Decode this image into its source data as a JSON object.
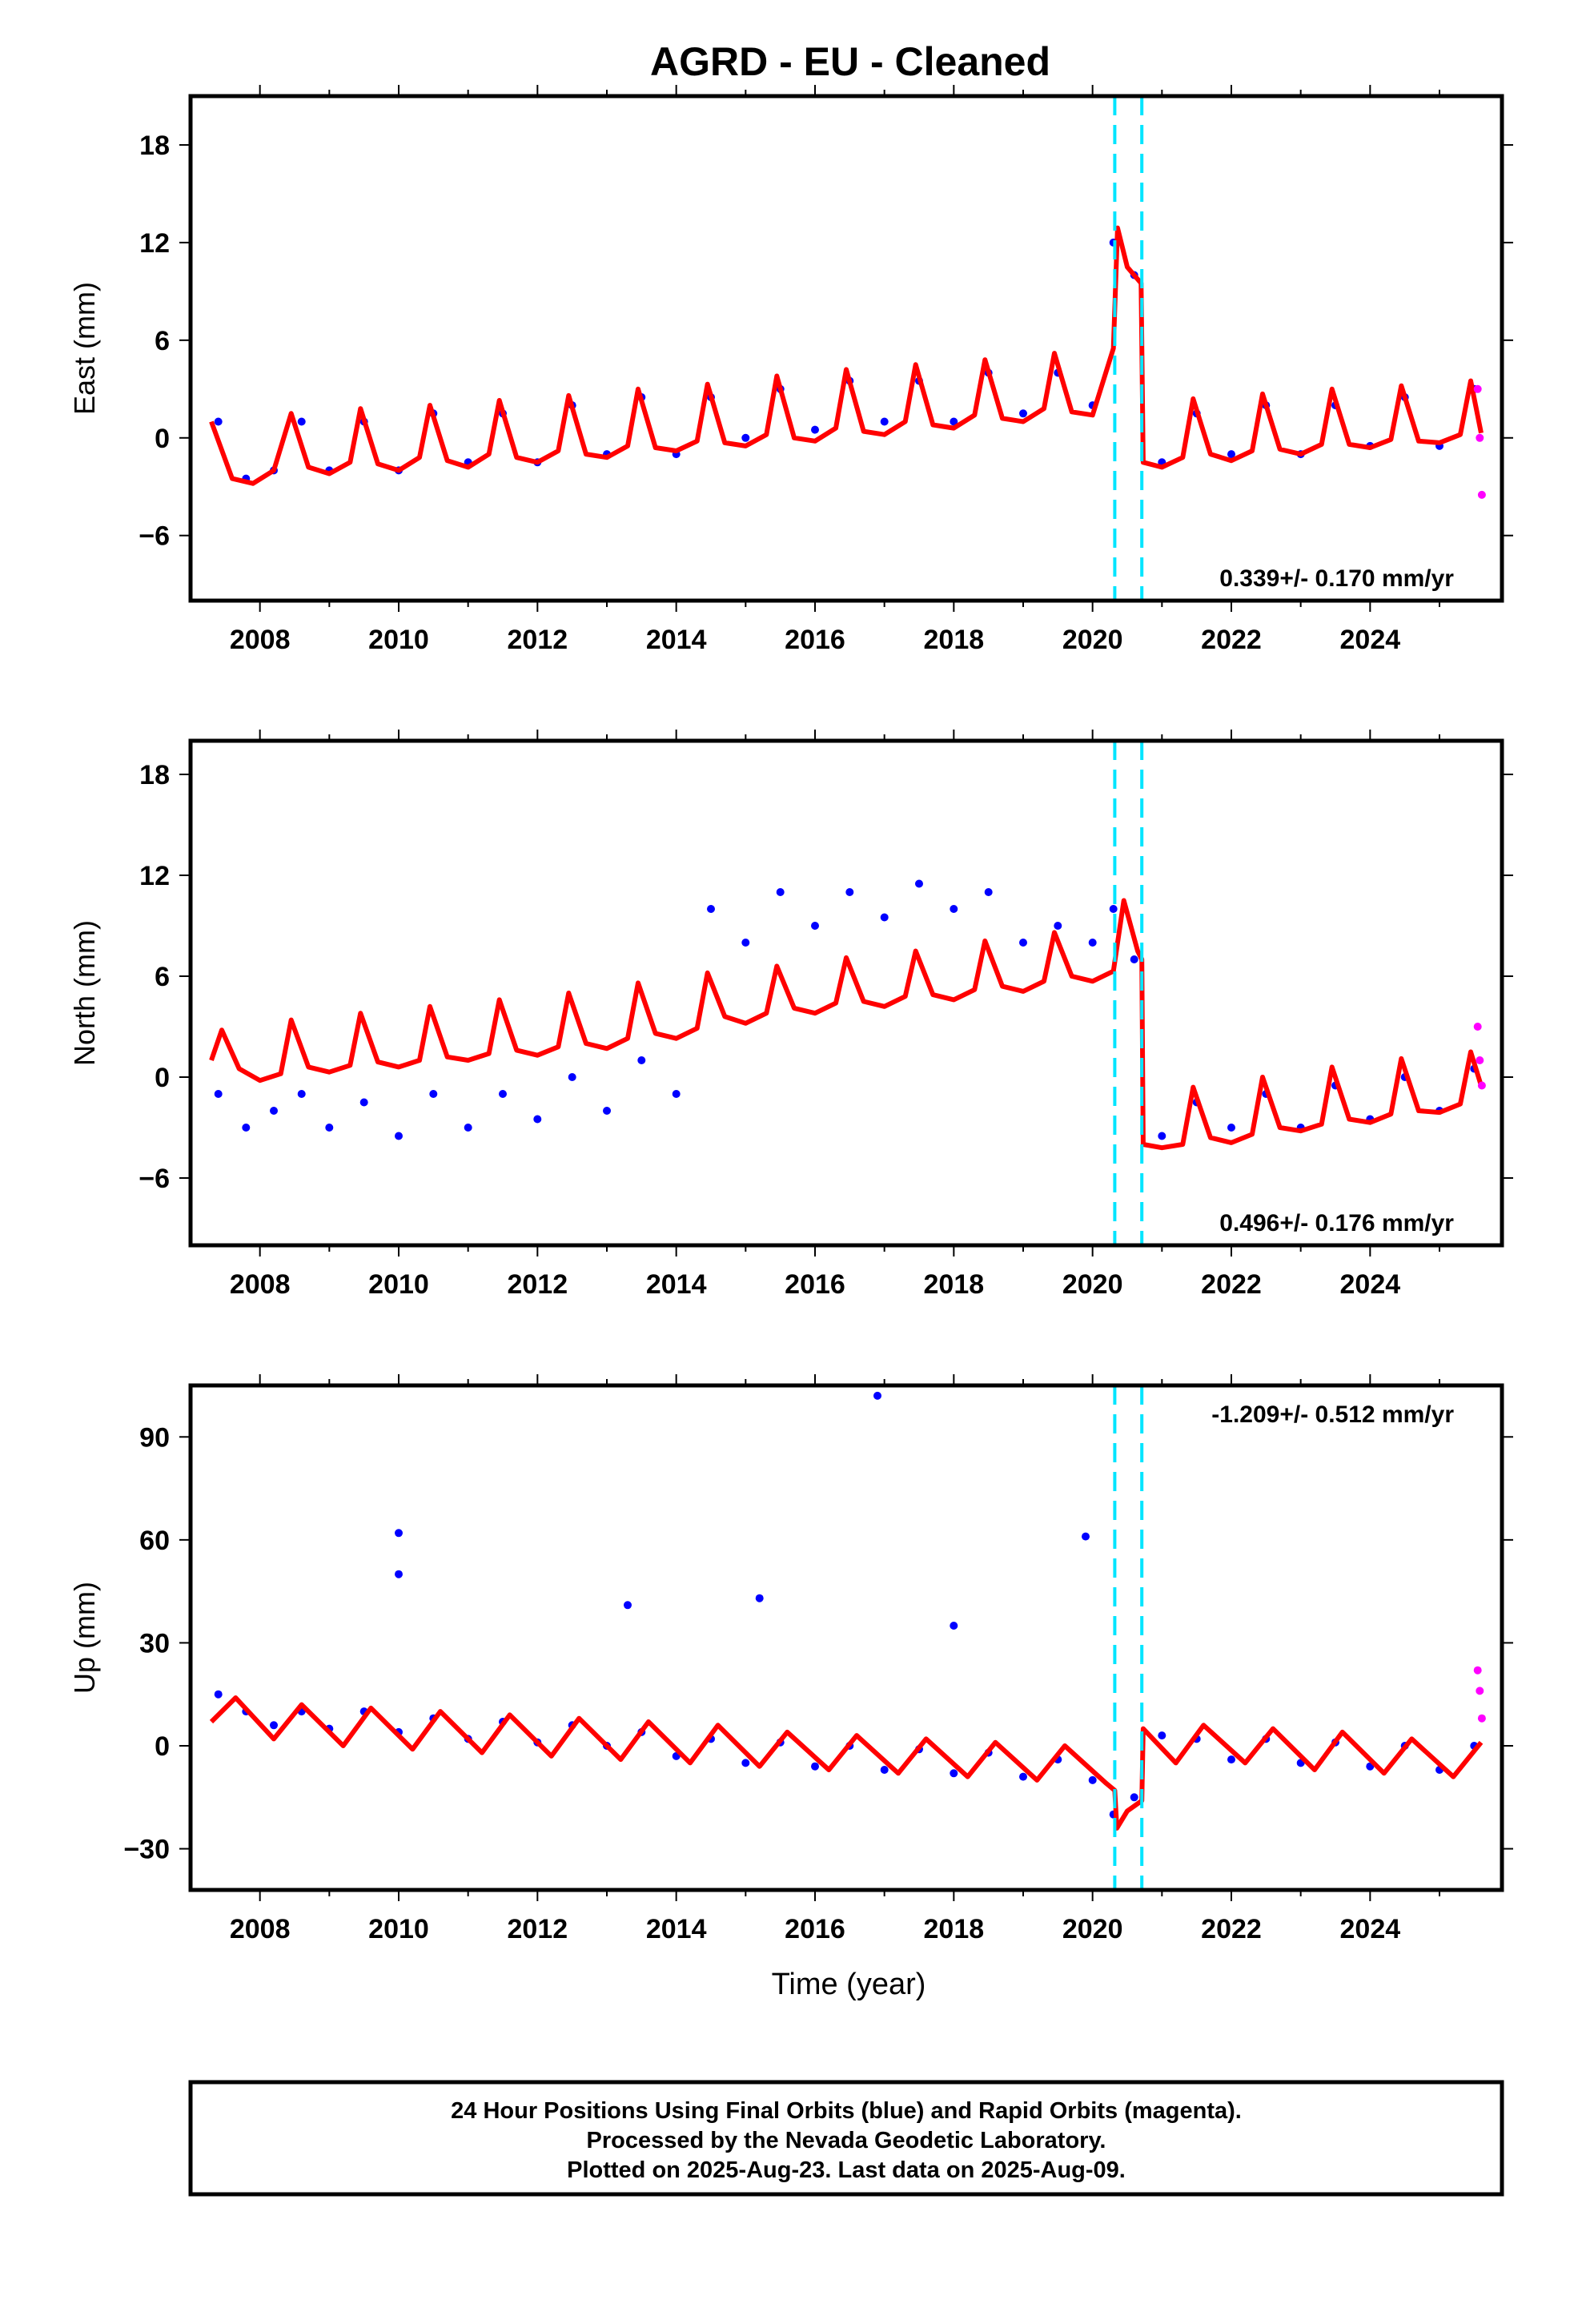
{
  "title": "AGRD  - EU - Cleaned",
  "x_label": "Time (year)",
  "x_ticks": [
    "2008",
    "2010",
    "2012",
    "2014",
    "2016",
    "2018",
    "2020",
    "2022",
    "2024"
  ],
  "footer": {
    "line1": "24 Hour Positions Using Final Orbits (blue) and Rapid Orbits (magenta).",
    "line2": "Processed by the Nevada Geodetic Laboratory.",
    "line3": "Plotted on 2025-Aug-23. Last data on 2025-Aug-09."
  },
  "colors": {
    "final_orbits": "#0000ff",
    "rapid_orbits": "#ff00ff",
    "model_fit": "#ff0000",
    "offset_lines": "#00e5ff",
    "frame": "#000000"
  },
  "chart_data": [
    {
      "type": "scatter",
      "panel": "east",
      "ylabel": "East (mm)",
      "xlim": [
        2007.0,
        2025.9
      ],
      "ylim": [
        -10,
        21
      ],
      "y_ticks": [
        -6,
        0,
        6,
        12,
        18
      ],
      "rate_label": "0.339+/- 0.170 mm/yr",
      "offset_epochs": [
        2020.32,
        2020.71
      ],
      "series": [
        {
          "name": "Final Orbits",
          "color": "#0000ff",
          "x": [
            2007.4,
            2007.8,
            2008.2,
            2008.6,
            2009.0,
            2009.5,
            2010.0,
            2010.5,
            2011.0,
            2011.5,
            2012.0,
            2012.5,
            2013.0,
            2013.5,
            2014.0,
            2014.5,
            2015.0,
            2015.5,
            2016.0,
            2016.5,
            2017.0,
            2017.5,
            2018.0,
            2018.5,
            2019.0,
            2019.5,
            2020.0,
            2020.3,
            2020.6,
            2021.0,
            2021.5,
            2022.0,
            2022.5,
            2023.0,
            2023.5,
            2024.0,
            2024.5,
            2025.0,
            2025.5
          ],
          "y": [
            1.0,
            -2.5,
            -2.0,
            1.0,
            -2.0,
            1.0,
            -2.0,
            1.5,
            -1.5,
            1.5,
            -1.5,
            2.0,
            -1.0,
            2.5,
            -1.0,
            2.5,
            0.0,
            3.0,
            0.5,
            3.5,
            1.0,
            3.5,
            1.0,
            4.0,
            1.5,
            4.0,
            2.0,
            12.0,
            10.0,
            -1.5,
            1.5,
            -1.0,
            2.0,
            -1.0,
            2.0,
            -0.5,
            2.5,
            -0.5,
            3.0
          ]
        },
        {
          "name": "Rapid Orbits",
          "color": "#ff00ff",
          "x": [
            2025.55,
            2025.58,
            2025.61
          ],
          "y": [
            3.0,
            0.0,
            -3.5
          ]
        },
        {
          "name": "Model Fit",
          "color": "#ff0000",
          "x": [
            2007.3,
            2007.6,
            2007.9,
            2008.2,
            2008.45,
            2008.7,
            2009.0,
            2009.3,
            2009.45,
            2009.7,
            2010.0,
            2010.3,
            2010.45,
            2010.7,
            2011.0,
            2011.3,
            2011.45,
            2011.7,
            2012.0,
            2012.3,
            2012.45,
            2012.7,
            2013.0,
            2013.3,
            2013.45,
            2013.7,
            2014.0,
            2014.3,
            2014.45,
            2014.7,
            2015.0,
            2015.3,
            2015.45,
            2015.7,
            2016.0,
            2016.3,
            2016.45,
            2016.7,
            2017.0,
            2017.3,
            2017.45,
            2017.7,
            2018.0,
            2018.3,
            2018.45,
            2018.7,
            2019.0,
            2019.3,
            2019.45,
            2019.7,
            2020.0,
            2020.3,
            2020.36,
            2020.5,
            2020.7,
            2020.73,
            2021.0,
            2021.3,
            2021.45,
            2021.7,
            2022.0,
            2022.3,
            2022.45,
            2022.7,
            2023.0,
            2023.3,
            2023.45,
            2023.7,
            2024.0,
            2024.3,
            2024.45,
            2024.7,
            2025.0,
            2025.3,
            2025.45,
            2025.6
          ],
          "y": [
            1.0,
            -2.5,
            -2.8,
            -2.0,
            1.5,
            -1.8,
            -2.2,
            -1.5,
            1.8,
            -1.6,
            -2.0,
            -1.2,
            2.0,
            -1.4,
            -1.8,
            -1.0,
            2.3,
            -1.2,
            -1.5,
            -0.8,
            2.6,
            -1.0,
            -1.2,
            -0.5,
            3.0,
            -0.6,
            -0.8,
            -0.2,
            3.3,
            -0.3,
            -0.5,
            0.2,
            3.8,
            0.0,
            -0.2,
            0.6,
            4.2,
            0.4,
            0.2,
            1.0,
            4.5,
            0.8,
            0.6,
            1.4,
            4.8,
            1.2,
            1.0,
            1.8,
            5.2,
            1.6,
            1.4,
            5.5,
            12.9,
            10.5,
            9.5,
            -1.5,
            -1.8,
            -1.2,
            2.4,
            -1.0,
            -1.4,
            -0.8,
            2.7,
            -0.7,
            -1.0,
            -0.4,
            3.0,
            -0.4,
            -0.6,
            -0.1,
            3.2,
            -0.2,
            -0.3,
            0.2,
            3.5,
            0.3
          ]
        }
      ]
    },
    {
      "type": "scatter",
      "panel": "north",
      "ylabel": "North (mm)",
      "xlim": [
        2007.0,
        2025.9
      ],
      "ylim": [
        -10,
        20
      ],
      "y_ticks": [
        -6,
        0,
        6,
        12,
        18
      ],
      "rate_label": "0.496+/- 0.176 mm/yr",
      "offset_epochs": [
        2020.32,
        2020.71
      ],
      "series": [
        {
          "name": "Final Orbits",
          "color": "#0000ff",
          "x": [
            2007.4,
            2007.8,
            2008.2,
            2008.6,
            2009.0,
            2009.5,
            2010.0,
            2010.5,
            2011.0,
            2011.5,
            2012.0,
            2012.5,
            2013.0,
            2013.5,
            2014.0,
            2014.5,
            2015.0,
            2015.5,
            2016.0,
            2016.5,
            2017.0,
            2017.5,
            2018.0,
            2018.5,
            2019.0,
            2019.5,
            2020.0,
            2020.3,
            2020.6,
            2021.0,
            2021.5,
            2022.0,
            2022.5,
            2023.0,
            2023.5,
            2024.0,
            2024.5,
            2025.0,
            2025.5
          ],
          "y": [
            -1.0,
            -3.0,
            -2.0,
            -1.0,
            -3.0,
            -1.5,
            -3.5,
            -1.0,
            -3.0,
            -1.0,
            -2.5,
            0.0,
            -2.0,
            1.0,
            -1.0,
            10.0,
            8.0,
            11.0,
            9.0,
            11.0,
            9.5,
            11.5,
            10.0,
            11.0,
            8.0,
            9.0,
            8.0,
            10.0,
            7.0,
            -3.5,
            -1.5,
            -3.0,
            -1.0,
            -3.0,
            -0.5,
            -2.5,
            0.0,
            -2.0,
            0.5
          ]
        },
        {
          "name": "Rapid Orbits",
          "color": "#ff00ff",
          "x": [
            2025.55,
            2025.58,
            2025.61
          ],
          "y": [
            3.0,
            1.0,
            -0.5
          ]
        },
        {
          "name": "Model Fit",
          "color": "#ff0000",
          "x": [
            2007.3,
            2007.45,
            2007.7,
            2008.0,
            2008.3,
            2008.45,
            2008.7,
            2009.0,
            2009.3,
            2009.45,
            2009.7,
            2010.0,
            2010.3,
            2010.45,
            2010.7,
            2011.0,
            2011.3,
            2011.45,
            2011.7,
            2012.0,
            2012.3,
            2012.45,
            2012.7,
            2013.0,
            2013.3,
            2013.45,
            2013.7,
            2014.0,
            2014.3,
            2014.45,
            2014.7,
            2015.0,
            2015.3,
            2015.45,
            2015.7,
            2016.0,
            2016.3,
            2016.45,
            2016.7,
            2017.0,
            2017.3,
            2017.45,
            2017.7,
            2018.0,
            2018.3,
            2018.45,
            2018.7,
            2019.0,
            2019.3,
            2019.45,
            2019.7,
            2020.0,
            2020.3,
            2020.45,
            2020.65,
            2020.71,
            2020.73,
            2021.0,
            2021.3,
            2021.45,
            2021.7,
            2022.0,
            2022.3,
            2022.45,
            2022.7,
            2023.0,
            2023.3,
            2023.45,
            2023.7,
            2024.0,
            2024.3,
            2024.45,
            2024.7,
            2025.0,
            2025.3,
            2025.45,
            2025.6
          ],
          "y": [
            1.0,
            2.8,
            0.5,
            -0.2,
            0.2,
            3.4,
            0.6,
            0.3,
            0.7,
            3.8,
            0.9,
            0.6,
            1.0,
            4.2,
            1.2,
            1.0,
            1.4,
            4.6,
            1.6,
            1.3,
            1.8,
            5.0,
            2.0,
            1.7,
            2.3,
            5.6,
            2.6,
            2.3,
            2.9,
            6.2,
            3.6,
            3.2,
            3.8,
            6.6,
            4.1,
            3.8,
            4.4,
            7.1,
            4.5,
            4.2,
            4.8,
            7.5,
            4.9,
            4.6,
            5.2,
            8.1,
            5.4,
            5.1,
            5.7,
            8.6,
            6.0,
            5.7,
            6.3,
            10.5,
            7.5,
            7.0,
            -4.0,
            -4.2,
            -4.0,
            -0.6,
            -3.6,
            -3.9,
            -3.4,
            0.0,
            -3.0,
            -3.2,
            -2.8,
            0.6,
            -2.5,
            -2.7,
            -2.2,
            1.1,
            -2.0,
            -2.1,
            -1.6,
            1.5,
            -0.5
          ]
        }
      ]
    },
    {
      "type": "scatter",
      "panel": "up",
      "ylabel": "Up (mm)",
      "xlim": [
        2007.0,
        2025.9
      ],
      "ylim": [
        -42,
        105
      ],
      "y_ticks": [
        -30,
        0,
        30,
        60,
        90
      ],
      "rate_label": "-1.209+/- 0.512 mm/yr",
      "offset_epochs": [
        2020.32,
        2020.71
      ],
      "series": [
        {
          "name": "Final Orbits",
          "color": "#0000ff",
          "x": [
            2007.4,
            2007.8,
            2008.2,
            2008.6,
            2009.0,
            2009.5,
            2010.0,
            2010.5,
            2011.0,
            2011.5,
            2012.0,
            2012.5,
            2013.0,
            2013.5,
            2014.0,
            2014.5,
            2015.0,
            2015.5,
            2016.0,
            2016.5,
            2017.0,
            2017.5,
            2018.0,
            2018.5,
            2019.0,
            2019.5,
            2020.0,
            2020.3,
            2020.6,
            2021.0,
            2021.5,
            2022.0,
            2022.5,
            2023.0,
            2023.5,
            2024.0,
            2024.5,
            2025.0,
            2025.5,
            2010.0,
            2010.0,
            2013.3,
            2015.2,
            2016.9,
            2018.0,
            2019.9
          ],
          "y": [
            15.0,
            10.0,
            6.0,
            10.0,
            5.0,
            10.0,
            4.0,
            8.0,
            2.0,
            7.0,
            1.0,
            6.0,
            0.0,
            4.0,
            -3.0,
            2.0,
            -5.0,
            1.0,
            -6.0,
            0.0,
            -7.0,
            -1.0,
            -8.0,
            -2.0,
            -9.0,
            -4.0,
            -10.0,
            -20.0,
            -15.0,
            3.0,
            2.0,
            -4.0,
            2.0,
            -5.0,
            1.0,
            -6.0,
            0.0,
            -7.0,
            0.0,
            62.0,
            50.0,
            41.0,
            43.0,
            102.0,
            35.0,
            61.0
          ]
        },
        {
          "name": "Rapid Orbits",
          "color": "#ff00ff",
          "x": [
            2025.55,
            2025.58,
            2025.61
          ],
          "y": [
            22.0,
            16.0,
            8.0
          ]
        },
        {
          "name": "Model Fit",
          "color": "#ff0000",
          "x": [
            2007.3,
            2007.65,
            2008.2,
            2008.6,
            2009.2,
            2009.6,
            2010.2,
            2010.6,
            2011.2,
            2011.6,
            2012.2,
            2012.6,
            2013.2,
            2013.6,
            2014.2,
            2014.6,
            2015.2,
            2015.6,
            2016.2,
            2016.6,
            2017.2,
            2017.6,
            2018.2,
            2018.6,
            2019.2,
            2019.6,
            2020.2,
            2020.32,
            2020.35,
            2020.5,
            2020.71,
            2020.73,
            2021.2,
            2021.6,
            2022.2,
            2022.6,
            2023.2,
            2023.6,
            2024.2,
            2024.6,
            2025.2,
            2025.6
          ],
          "y": [
            7.0,
            14.0,
            2.0,
            12.0,
            0.0,
            11.0,
            -1.0,
            10.0,
            -2.0,
            9.0,
            -3.0,
            8.0,
            -4.0,
            7.0,
            -5.0,
            6.0,
            -6.0,
            4.0,
            -7.0,
            3.0,
            -8.0,
            2.0,
            -9.0,
            1.0,
            -10.0,
            0.0,
            -11.0,
            -13.0,
            -24.0,
            -19.0,
            -16.0,
            5.0,
            -5.0,
            6.0,
            -5.0,
            5.0,
            -7.0,
            4.0,
            -8.0,
            2.0,
            -9.0,
            1.0
          ]
        }
      ]
    }
  ]
}
